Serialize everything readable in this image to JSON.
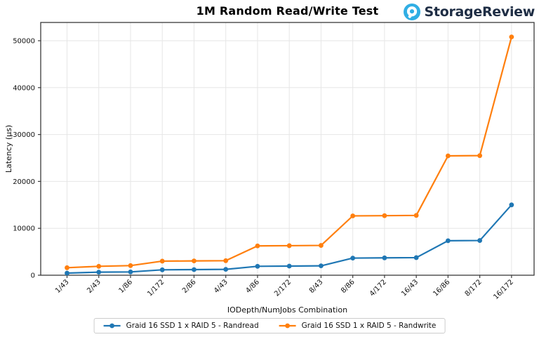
{
  "header": {
    "brand": "StorageReview",
    "brand_icon_color": "#30aee4",
    "brand_text_color": "#1e2d44"
  },
  "chart_data": {
    "type": "line",
    "title": "1M Random Read/Write Test",
    "xlabel": "IODepth/NumJobs Combination",
    "ylabel": "Latency (µs)",
    "ylim": [
      0,
      50000
    ],
    "yticks": [
      0,
      10000,
      20000,
      30000,
      40000,
      50000
    ],
    "grid": true,
    "legend_position": "bottom",
    "categories": [
      "1/43",
      "2/43",
      "1/86",
      "1/172",
      "2/86",
      "4/43",
      "4/86",
      "2/172",
      "8/43",
      "8/86",
      "4/172",
      "16/43",
      "16/86",
      "8/172",
      "16/172"
    ],
    "series": [
      {
        "name": "Graid 16 SSD 1 x RAID 5 - Randread",
        "color": "#1f77b4",
        "values": [
          450,
          650,
          700,
          1150,
          1200,
          1250,
          1900,
          1950,
          2000,
          3650,
          3700,
          3750,
          7350,
          7400,
          15000
        ]
      },
      {
        "name": "Graid 16 SSD 1 x RAID 5 - Randwrite",
        "color": "#ff7f0e",
        "values": [
          1600,
          1900,
          2050,
          3000,
          3050,
          3100,
          6250,
          6300,
          6350,
          12650,
          12700,
          12750,
          25450,
          25500,
          50800
        ]
      }
    ],
    "style": {
      "grid_color": "#e6e6e6",
      "spine_color": "#3a3a3a",
      "tick_label_color": "#111111"
    }
  }
}
